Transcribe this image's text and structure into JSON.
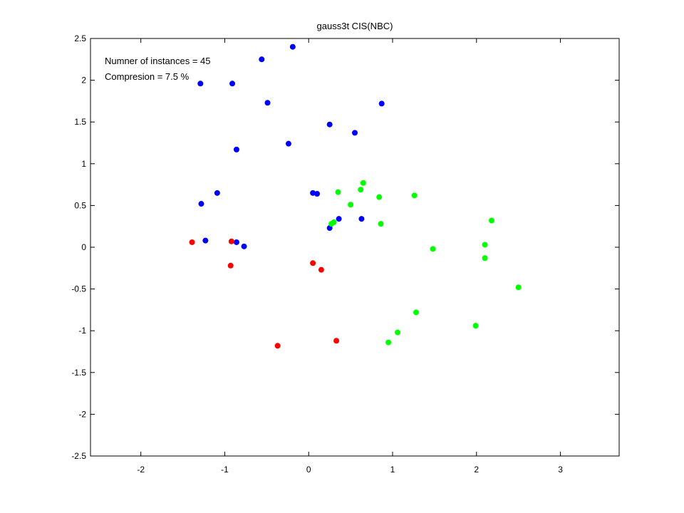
{
  "chart_data": {
    "type": "scatter",
    "title": "gauss3t CIS(NBC)",
    "xlabel": "",
    "ylabel": "",
    "xlim": [
      -2.6,
      3.7
    ],
    "ylim": [
      -2.5,
      2.5
    ],
    "x_ticks": [
      -2,
      -1,
      0,
      1,
      2,
      3
    ],
    "y_ticks": [
      -2.5,
      -2,
      -1.5,
      -1,
      -0.5,
      0,
      0.5,
      1,
      1.5,
      2,
      2.5
    ],
    "grid": false,
    "legend": "none",
    "annotations": [
      "Numner of instances = 45",
      "Compresion = 7.5 %"
    ],
    "series": [
      {
        "color": "#0000ff",
        "points": [
          [
            -0.19,
            2.4
          ],
          [
            -0.56,
            2.25
          ],
          [
            -1.29,
            1.96
          ],
          [
            -0.91,
            1.96
          ],
          [
            -0.49,
            1.73
          ],
          [
            0.87,
            1.72
          ],
          [
            0.25,
            1.47
          ],
          [
            0.55,
            1.37
          ],
          [
            -0.24,
            1.24
          ],
          [
            -0.86,
            1.17
          ],
          [
            -1.09,
            0.65
          ],
          [
            0.05,
            0.65
          ],
          [
            0.1,
            0.64
          ],
          [
            -1.28,
            0.52
          ],
          [
            0.36,
            0.34
          ],
          [
            0.63,
            0.34
          ],
          [
            0.25,
            0.23
          ],
          [
            -1.23,
            0.08
          ],
          [
            -0.86,
            0.06
          ],
          [
            -0.77,
            0.01
          ]
        ]
      },
      {
        "color": "#ff0000",
        "points": [
          [
            -1.39,
            0.06
          ],
          [
            -0.92,
            0.07
          ],
          [
            -0.93,
            -0.22
          ],
          [
            0.05,
            -0.19
          ],
          [
            0.15,
            -0.27
          ],
          [
            -0.37,
            -1.18
          ],
          [
            0.33,
            -1.12
          ]
        ]
      },
      {
        "color": "#00ff00",
        "points": [
          [
            0.65,
            0.77
          ],
          [
            0.35,
            0.66
          ],
          [
            0.62,
            0.69
          ],
          [
            1.26,
            0.62
          ],
          [
            0.84,
            0.6
          ],
          [
            0.5,
            0.51
          ],
          [
            0.3,
            0.3
          ],
          [
            0.27,
            0.28
          ],
          [
            0.86,
            0.28
          ],
          [
            2.18,
            0.32
          ],
          [
            2.1,
            0.03
          ],
          [
            1.48,
            -0.02
          ],
          [
            2.1,
            -0.13
          ],
          [
            2.5,
            -0.48
          ],
          [
            1.28,
            -0.78
          ],
          [
            1.99,
            -0.94
          ],
          [
            1.06,
            -1.02
          ],
          [
            0.95,
            -1.14
          ]
        ]
      }
    ]
  }
}
